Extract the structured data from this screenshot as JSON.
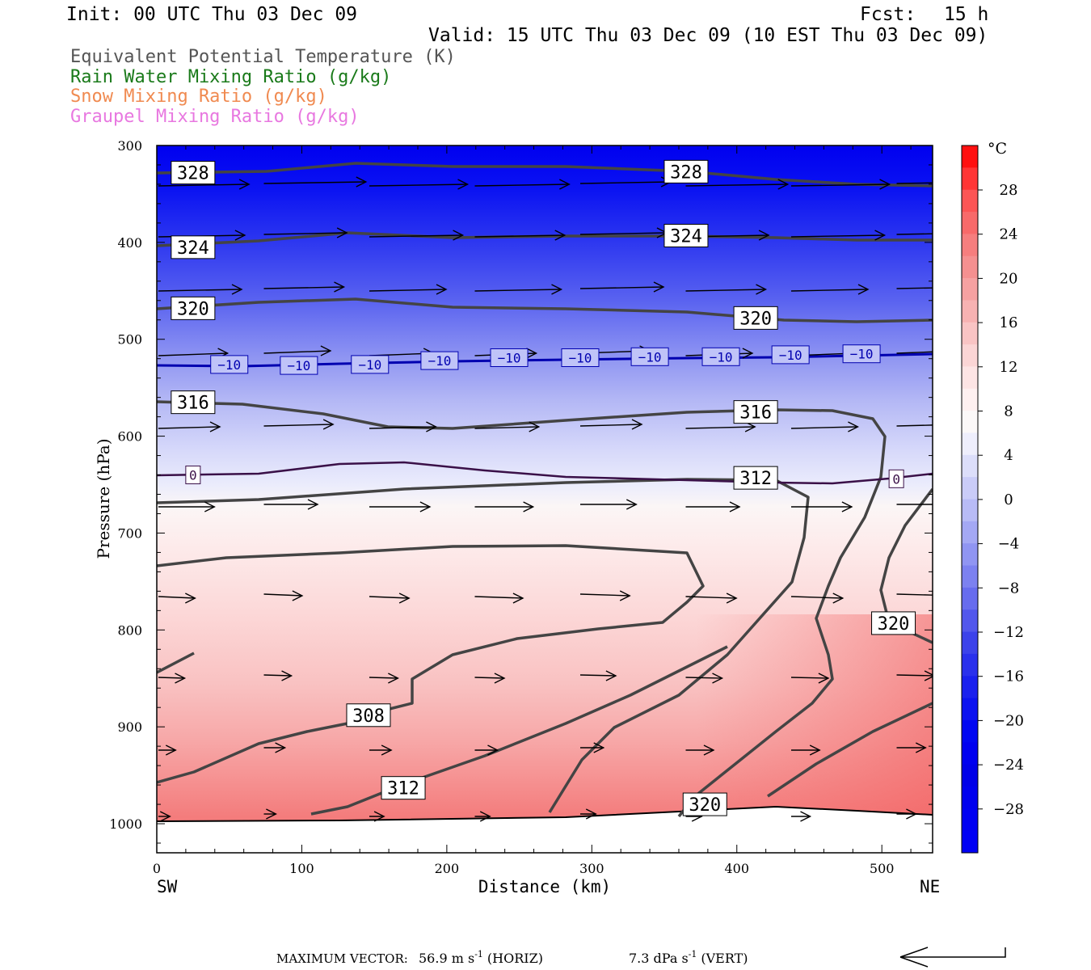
{
  "header": {
    "init": "Init: 00 UTC Thu 03 Dec 09",
    "fcst_label": "Fcst:",
    "fcst_value": "15 h",
    "valid": "Valid: 15 UTC Thu 03 Dec 09 (10 EST Thu 03 Dec 09)"
  },
  "legend": [
    {
      "label": "Equivalent Potential Temperature (K)",
      "color": "#555555"
    },
    {
      "label": "Rain Water Mixing Ratio (g/kg)",
      "color": "#1a7a1a"
    },
    {
      "label": "Snow Mixing Ratio (g/kg)",
      "color": "#f08a50"
    },
    {
      "label": "Graupel Mixing Ratio (g/kg)",
      "color": "#e878e0"
    }
  ],
  "chart_data": {
    "type": "cross-section",
    "xlabel": "Distance (km)",
    "ylabel": "Pressure (hPa)",
    "xlim": [
      0,
      535
    ],
    "ylim": [
      1030,
      300
    ],
    "x_ticks": [
      "0",
      "100",
      "200",
      "300",
      "400",
      "500"
    ],
    "y_ticks": [
      "300",
      "400",
      "500",
      "600",
      "700",
      "800",
      "900",
      "1000"
    ],
    "endpoints": {
      "left": "SW",
      "right": "NE"
    },
    "colorbar": {
      "unit": "°C",
      "labels": [
        "28",
        "24",
        "20",
        "16",
        "12",
        "8",
        "4",
        "0",
        "−4",
        "−8",
        "−12",
        "−16",
        "−20",
        "−24",
        "−28"
      ]
    },
    "theta_e_labels": [
      {
        "text": "328",
        "x": 25,
        "p": 328
      },
      {
        "text": "328",
        "x": 365,
        "p": 327
      },
      {
        "text": "324",
        "x": 25,
        "p": 405
      },
      {
        "text": "324",
        "x": 365,
        "p": 393
      },
      {
        "text": "320",
        "x": 25,
        "p": 468
      },
      {
        "text": "320",
        "x": 413,
        "p": 478
      },
      {
        "text": "316",
        "x": 25,
        "p": 565
      },
      {
        "text": "316",
        "x": 413,
        "p": 575
      },
      {
        "text": "312",
        "x": 413,
        "p": 643
      },
      {
        "text": "320",
        "x": 508,
        "p": 793
      },
      {
        "text": "308",
        "x": 146,
        "p": 888
      },
      {
        "text": "312",
        "x": 170,
        "p": 963
      },
      {
        "text": "320",
        "x": 378,
        "p": 980
      }
    ],
    "isotherm_labels": {
      "minus10": {
        "text": "−10",
        "positions": [
          [
            50,
            526
          ],
          [
            98,
            527
          ],
          [
            147,
            526
          ],
          [
            195,
            522
          ],
          [
            243,
            519
          ],
          [
            292,
            519
          ],
          [
            340,
            518
          ],
          [
            389,
            518
          ],
          [
            437,
            516
          ],
          [
            486,
            515
          ]
        ]
      },
      "zero": {
        "text": "0",
        "positions": [
          [
            25,
            640
          ],
          [
            510,
            644
          ]
        ]
      }
    },
    "max_vector": {
      "label": "MAXIMUM VECTOR:",
      "horiz": "56.9 m s",
      "horiz_unit": "(HORIZ)",
      "vert": "7.3 dPa s",
      "vert_unit": "(VERT)",
      "exponent": "-1"
    }
  }
}
